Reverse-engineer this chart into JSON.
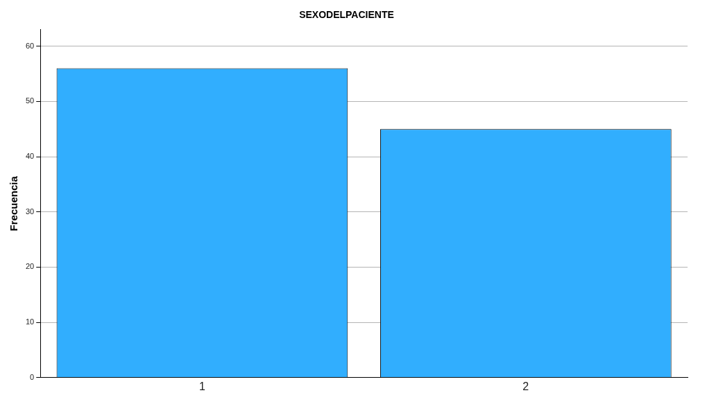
{
  "chart_data": {
    "type": "bar",
    "title": "SEXODELPACIENTE",
    "ylabel": "Frecuencia",
    "categories": [
      "1",
      "2"
    ],
    "values": [
      56,
      45
    ],
    "color": "#31aefe",
    "ylim": [
      0,
      63
    ],
    "yticks": [
      0,
      10,
      20,
      30,
      40,
      50,
      60
    ],
    "grid": "y"
  }
}
